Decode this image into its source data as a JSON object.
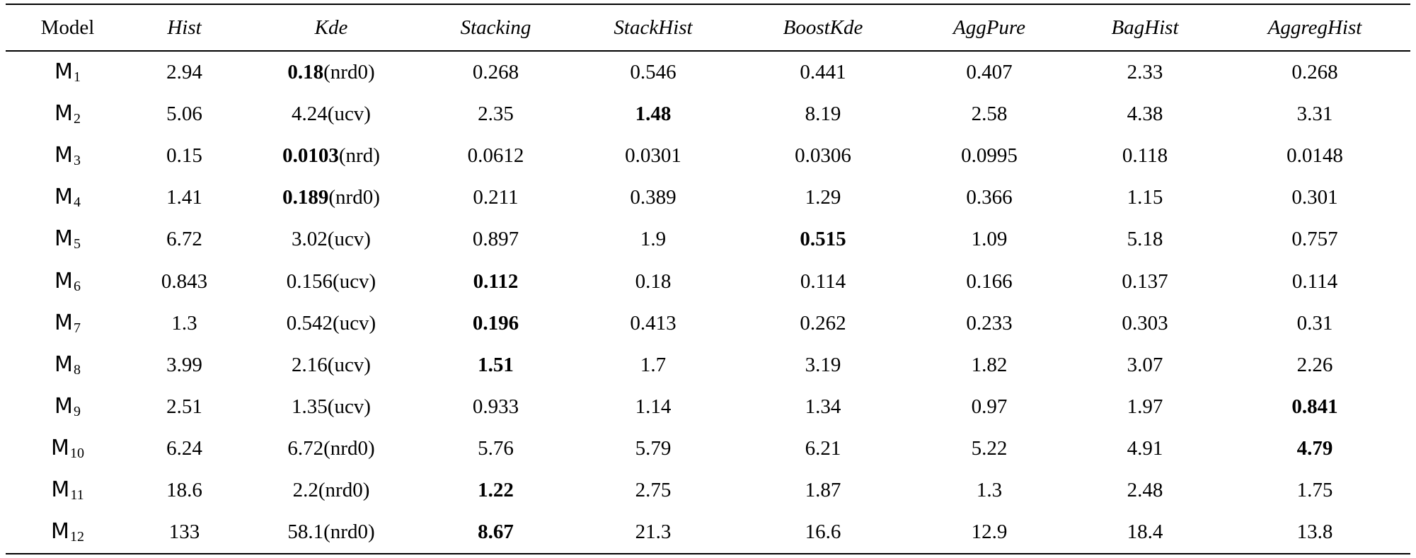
{
  "table": {
    "headers": [
      "Model",
      "Hist",
      "Kde",
      "Stacking",
      "StackHist",
      "BoostKde",
      "AggPure",
      "BagHist",
      "AggregHist"
    ],
    "rows": [
      {
        "model": "M",
        "sub": "1",
        "cells": [
          {
            "v": "2.94"
          },
          {
            "v": "0.18",
            "b": true,
            "s": "(nrd0)"
          },
          {
            "v": "0.268"
          },
          {
            "v": "0.546"
          },
          {
            "v": "0.441"
          },
          {
            "v": "0.407"
          },
          {
            "v": "2.33"
          },
          {
            "v": "0.268"
          }
        ]
      },
      {
        "model": "M",
        "sub": "2",
        "cells": [
          {
            "v": "5.06"
          },
          {
            "v": "4.24",
            "s": "(ucv)"
          },
          {
            "v": "2.35"
          },
          {
            "v": "1.48",
            "b": true
          },
          {
            "v": "8.19"
          },
          {
            "v": "2.58"
          },
          {
            "v": "4.38"
          },
          {
            "v": "3.31"
          }
        ]
      },
      {
        "model": "M",
        "sub": "3",
        "cells": [
          {
            "v": "0.15"
          },
          {
            "v": "0.0103",
            "b": true,
            "s": "(nrd)"
          },
          {
            "v": "0.0612"
          },
          {
            "v": "0.0301"
          },
          {
            "v": "0.0306"
          },
          {
            "v": "0.0995"
          },
          {
            "v": "0.118"
          },
          {
            "v": "0.0148"
          }
        ]
      },
      {
        "model": "M",
        "sub": "4",
        "cells": [
          {
            "v": "1.41"
          },
          {
            "v": "0.189",
            "b": true,
            "s": "(nrd0)"
          },
          {
            "v": "0.211"
          },
          {
            "v": "0.389"
          },
          {
            "v": "1.29"
          },
          {
            "v": "0.366"
          },
          {
            "v": "1.15"
          },
          {
            "v": "0.301"
          }
        ]
      },
      {
        "model": "M",
        "sub": "5",
        "cells": [
          {
            "v": "6.72"
          },
          {
            "v": "3.02",
            "s": "(ucv)"
          },
          {
            "v": "0.897"
          },
          {
            "v": "1.9"
          },
          {
            "v": "0.515",
            "b": true
          },
          {
            "v": "1.09"
          },
          {
            "v": "5.18"
          },
          {
            "v": "0.757"
          }
        ]
      },
      {
        "model": "M",
        "sub": "6",
        "cells": [
          {
            "v": "0.843"
          },
          {
            "v": "0.156",
            "s": "(ucv)"
          },
          {
            "v": "0.112",
            "b": true
          },
          {
            "v": "0.18"
          },
          {
            "v": "0.114"
          },
          {
            "v": "0.166"
          },
          {
            "v": "0.137"
          },
          {
            "v": "0.114"
          }
        ]
      },
      {
        "model": "M",
        "sub": "7",
        "cells": [
          {
            "v": "1.3"
          },
          {
            "v": "0.542",
            "s": "(ucv)"
          },
          {
            "v": "0.196",
            "b": true
          },
          {
            "v": "0.413"
          },
          {
            "v": "0.262"
          },
          {
            "v": "0.233"
          },
          {
            "v": "0.303"
          },
          {
            "v": "0.31"
          }
        ]
      },
      {
        "model": "M",
        "sub": "8",
        "cells": [
          {
            "v": "3.99"
          },
          {
            "v": "2.16",
            "s": "(ucv)"
          },
          {
            "v": "1.51",
            "b": true
          },
          {
            "v": "1.7"
          },
          {
            "v": "3.19"
          },
          {
            "v": "1.82"
          },
          {
            "v": "3.07"
          },
          {
            "v": "2.26"
          }
        ]
      },
      {
        "model": "M",
        "sub": "9",
        "cells": [
          {
            "v": "2.51"
          },
          {
            "v": "1.35",
            "s": "(ucv)"
          },
          {
            "v": "0.933"
          },
          {
            "v": "1.14"
          },
          {
            "v": "1.34"
          },
          {
            "v": "0.97"
          },
          {
            "v": "1.97"
          },
          {
            "v": "0.841",
            "b": true
          }
        ]
      },
      {
        "model": "M",
        "sub": "10",
        "cells": [
          {
            "v": "6.24"
          },
          {
            "v": "6.72",
            "s": "(nrd0)"
          },
          {
            "v": "5.76"
          },
          {
            "v": "5.79"
          },
          {
            "v": "6.21"
          },
          {
            "v": "5.22"
          },
          {
            "v": "4.91"
          },
          {
            "v": "4.79",
            "b": true
          }
        ]
      },
      {
        "model": "M",
        "sub": "11",
        "cells": [
          {
            "v": "18.6"
          },
          {
            "v": "2.2",
            "s": "(nrd0)"
          },
          {
            "v": "1.22",
            "b": true
          },
          {
            "v": "2.75"
          },
          {
            "v": "1.87"
          },
          {
            "v": "1.3"
          },
          {
            "v": "2.48"
          },
          {
            "v": "1.75"
          }
        ]
      },
      {
        "model": "M",
        "sub": "12",
        "cells": [
          {
            "v": "133"
          },
          {
            "v": "58.1",
            "s": "(nrd0)"
          },
          {
            "v": "8.67",
            "b": true
          },
          {
            "v": "21.3"
          },
          {
            "v": "16.6"
          },
          {
            "v": "12.9"
          },
          {
            "v": "18.4"
          },
          {
            "v": "13.8"
          }
        ]
      }
    ]
  }
}
